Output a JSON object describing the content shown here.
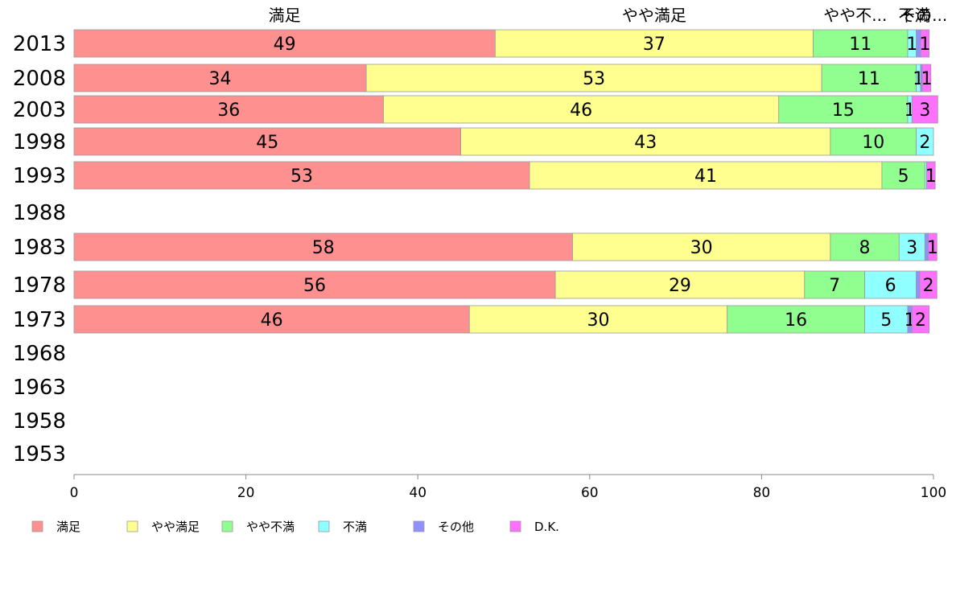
{
  "chart_data": {
    "type": "bar",
    "orientation": "horizontal",
    "stacked": true,
    "categories": [
      "2013",
      "2008",
      "2003",
      "1998",
      "1993",
      "1988",
      "1983",
      "1978",
      "1973",
      "1968",
      "1963",
      "1958",
      "1953"
    ],
    "series": [
      {
        "name": "満足",
        "color": "#ff9090",
        "values": [
          49,
          34,
          36,
          45,
          53,
          null,
          58,
          56,
          46,
          null,
          null,
          null,
          null
        ]
      },
      {
        "name": "やや満足",
        "color": "#ffff90",
        "values": [
          37,
          53,
          46,
          43,
          41,
          null,
          30,
          29,
          30,
          null,
          null,
          null,
          null
        ]
      },
      {
        "name": "やや不満",
        "color": "#90ff90",
        "values": [
          11,
          11,
          15,
          10,
          5,
          null,
          8,
          7,
          16,
          null,
          null,
          null,
          null
        ]
      },
      {
        "name": "不満",
        "color": "#90ffff",
        "values": [
          1,
          0.5,
          0.5,
          2,
          0.2,
          null,
          3,
          6,
          5,
          null,
          null,
          null,
          null
        ]
      },
      {
        "name": "その他",
        "color": "#9090ff",
        "values": [
          0.5,
          0.2,
          0,
          0,
          0,
          null,
          0.4,
          0.4,
          0.5,
          null,
          null,
          null,
          null
        ]
      },
      {
        "name": "D.K.",
        "color": "#ff70ff",
        "values": [
          1,
          1,
          3,
          0,
          1,
          null,
          1,
          2,
          2,
          null,
          null,
          null,
          null
        ]
      }
    ],
    "data_labels": [
      [
        "49",
        "37",
        "11",
        "1",
        "",
        "1"
      ],
      [
        "34",
        "53",
        "11",
        "1",
        "",
        "1"
      ],
      [
        "36",
        "46",
        "15",
        "1",
        "",
        "3"
      ],
      [
        "45",
        "43",
        "10",
        "2",
        "",
        ""
      ],
      [
        "53",
        "41",
        "5",
        "",
        "",
        "1"
      ],
      [
        "",
        "",
        "",
        "",
        "",
        ""
      ],
      [
        "58",
        "30",
        "8",
        "3",
        "",
        "1"
      ],
      [
        "56",
        "29",
        "7",
        "6",
        "",
        "2"
      ],
      [
        "46",
        "30",
        "16",
        "5",
        "1",
        "2"
      ],
      [
        "",
        "",
        "",
        "",
        "",
        ""
      ],
      [
        "",
        "",
        "",
        "",
        "",
        ""
      ],
      [
        "",
        "",
        "",
        "",
        "",
        ""
      ],
      [
        "",
        "",
        "",
        "",
        "",
        ""
      ]
    ],
    "top_labels": [
      "満足",
      "やや満足",
      "やや不...",
      "不満",
      "その..."
    ],
    "xlim": [
      0,
      100
    ],
    "x_ticks": [
      "0",
      "20",
      "40",
      "60",
      "80",
      "100"
    ],
    "grid": false,
    "legend_position": "bottom"
  }
}
